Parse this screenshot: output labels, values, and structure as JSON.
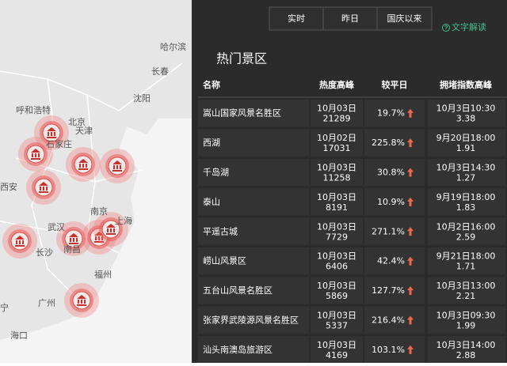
{
  "tabs": [
    "实时",
    "昨日",
    "国庆以来"
  ],
  "link": "文字解读",
  "panel_title": "热门景区",
  "table": {
    "columns": [
      "名称",
      "热度高峰",
      "较平日",
      "拥堵指数高峰"
    ],
    "rows": [
      [
        "嵩山国家风景名胜区",
        "10月03日",
        21289,
        "19.7%",
        "10月3日10:30",
        3.38
      ],
      [
        "西湖",
        "10月02日",
        17031,
        "225.8%",
        "9月20日18:00",
        1.91
      ],
      [
        "千岛湖",
        "10月03日",
        11258,
        "30.8%",
        "10月3日14:30",
        1.27
      ],
      [
        "泰山",
        "10月03日",
        8191,
        "10.9%",
        "9月19日18:00",
        1.83
      ],
      [
        "平遥古城",
        "10月03日",
        7729,
        "271.1%",
        "10月2日16:00",
        2.59
      ],
      [
        "崂山风景区",
        "10月03日",
        6406,
        "42.4%",
        "9月21日18:00",
        1.71
      ],
      [
        "五台山风景名胜区",
        "10月03日",
        5869,
        "127.7%",
        "10月3日13:00",
        2.21
      ],
      [
        "张家界武陵源风景名胜区",
        "10月03日",
        5337,
        "216.4%",
        "10月3日09:30",
        1.99
      ],
      [
        "汕头南澳岛旅游区",
        "10月03日",
        4169,
        "103.1%",
        "10月3日14:00",
        2.88
      ]
    ]
  },
  "map": {
    "cities": [
      "哈尔滨",
      "长春",
      "沈阳",
      "呼和浩特",
      "北京",
      "天津",
      "石家庄",
      "西安",
      "南京",
      "上海",
      "武汉",
      "长沙",
      "南昌",
      "福州",
      "广州",
      "海口",
      "宁"
    ]
  }
}
